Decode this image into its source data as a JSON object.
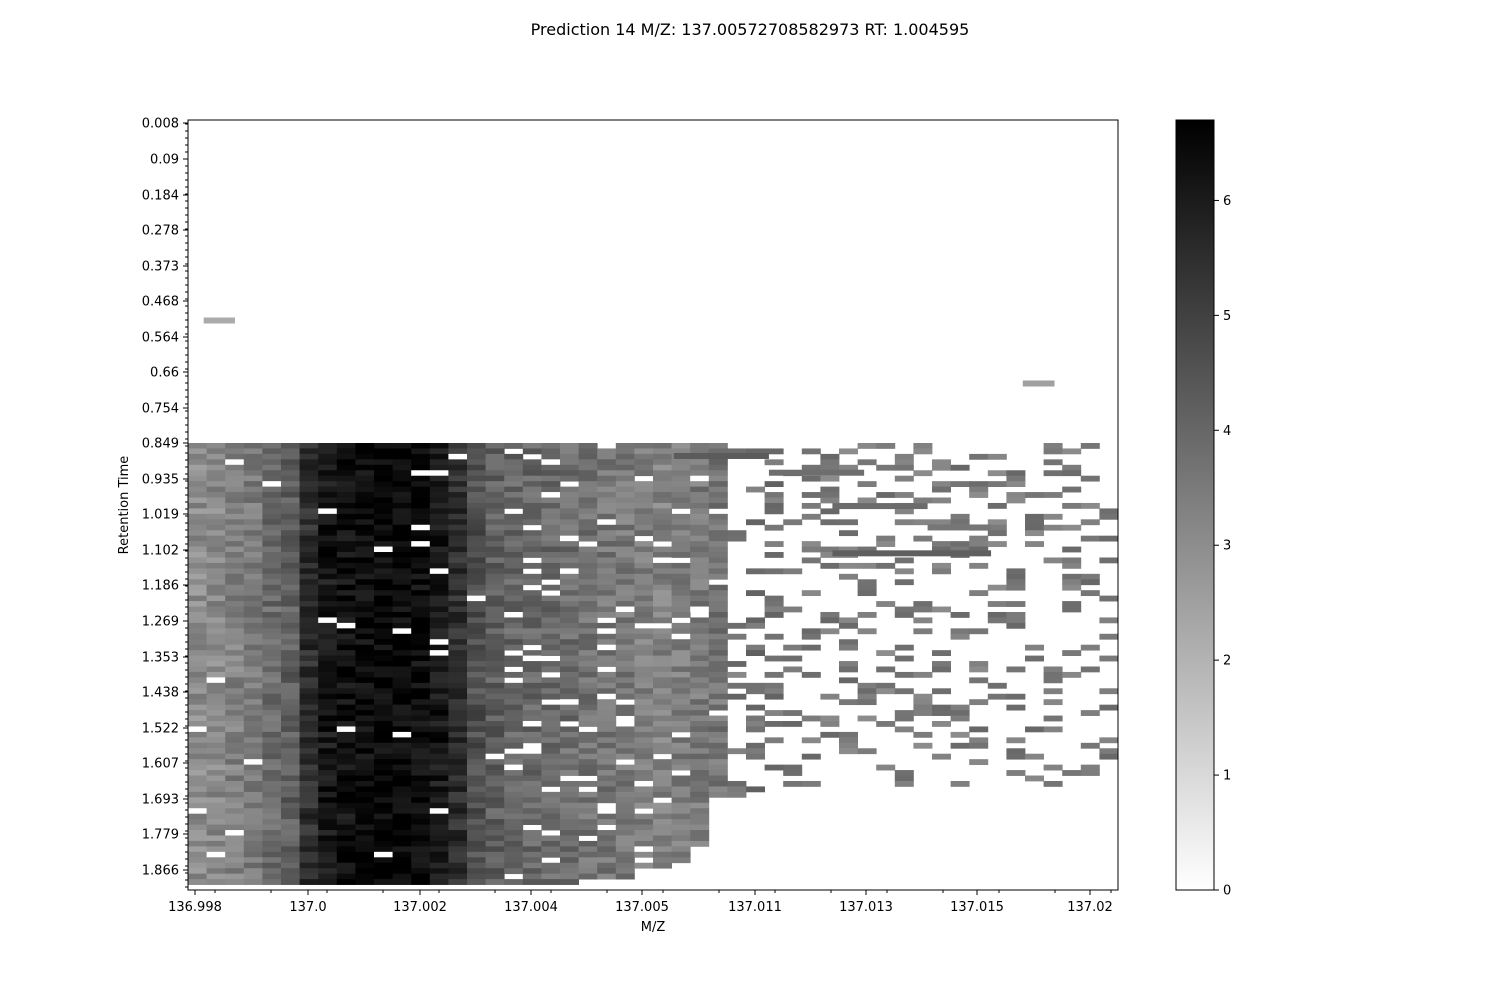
{
  "chart_data": {
    "type": "heatmap",
    "title": "Prediction 14 M/Z: 137.00572708582973  RT: 1.004595",
    "xlabel": "M/Z",
    "ylabel": "Retention Time",
    "x_tick_labels": [
      "136.998",
      "137.0",
      "137.002",
      "137.004",
      "137.005",
      "137.011",
      "137.013",
      "137.015",
      "137.02"
    ],
    "y_tick_labels": [
      "0.008",
      "0.09",
      "0.184",
      "0.278",
      "0.373",
      "0.468",
      "0.564",
      "0.66",
      "0.754",
      "0.849",
      "0.935",
      "1.019",
      "1.102",
      "1.186",
      "1.269",
      "1.353",
      "1.438",
      "1.522",
      "1.607",
      "1.693",
      "1.779",
      "1.866"
    ],
    "colorbar": {
      "range": [
        0,
        6.7
      ],
      "ticks": [
        "0",
        "1",
        "2",
        "3",
        "4",
        "5",
        "6"
      ],
      "colormap": "white-to-black"
    },
    "grid": false,
    "columns": 50,
    "rows": 82,
    "signal_onset_rt": "0.849",
    "column_base_intensity": [
      3.0,
      3.1,
      3.3,
      3.5,
      3.9,
      4.2,
      5.5,
      6.1,
      6.3,
      6.4,
      6.5,
      6.5,
      6.4,
      6.1,
      5.5,
      4.6,
      4.2,
      4.0,
      4.0,
      3.9,
      3.8,
      3.7,
      3.6,
      3.5,
      3.4,
      3.3,
      3.4,
      3.5,
      3.6,
      3.6,
      3.7,
      3.7,
      3.6,
      3.5,
      3.5,
      3.5,
      3.5,
      3.5,
      3.5,
      3.5,
      3.5,
      3.5,
      3.5,
      3.5,
      3.5,
      3.5,
      3.5,
      3.5,
      3.5,
      3.5
    ],
    "column_extent_rt": [
      "1.900",
      "1.900",
      "1.900",
      "1.900",
      "1.900",
      "1.900",
      "1.900",
      "1.900",
      "1.900",
      "1.900",
      "1.900",
      "1.900",
      "1.900",
      "1.900",
      "1.900",
      "1.900",
      "1.900",
      "1.900",
      "1.900",
      "1.900",
      "1.900",
      "1.880",
      "1.880",
      "1.880",
      "1.860",
      "1.860",
      "1.840",
      "1.800",
      "1.700",
      "1.700",
      "1.700",
      "1.680",
      "1.660",
      "1.660",
      "1.660",
      "1.660",
      "1.660",
      "1.660",
      "1.660",
      "1.660",
      "1.660",
      "1.660",
      "1.660",
      "1.660",
      "1.660",
      "1.660",
      "1.660",
      "1.660",
      "1.660",
      "1.660"
    ],
    "isolated_traces": [
      {
        "mz_from": "136.998",
        "mz_to": "136.9985",
        "rt": "0.52",
        "intensity": 2.2
      },
      {
        "mz_from": "137.017",
        "mz_to": "137.018",
        "rt": "0.69",
        "intensity": 2.5
      },
      {
        "mz_from": "137.006",
        "mz_to": "137.009",
        "rt": "0.88",
        "intensity": 4.3
      },
      {
        "mz_from": "137.009",
        "mz_to": "137.012",
        "rt": "0.92",
        "intensity": 3.8
      },
      {
        "mz_from": "137.011",
        "mz_to": "137.014",
        "rt": "1.00",
        "intensity": 3.9
      },
      {
        "mz_from": "137.014",
        "mz_to": "137.016",
        "rt": "1.05",
        "intensity": 3.6
      },
      {
        "mz_from": "137.011",
        "mz_to": "137.016",
        "rt": "1.11",
        "intensity": 4.2
      }
    ]
  }
}
